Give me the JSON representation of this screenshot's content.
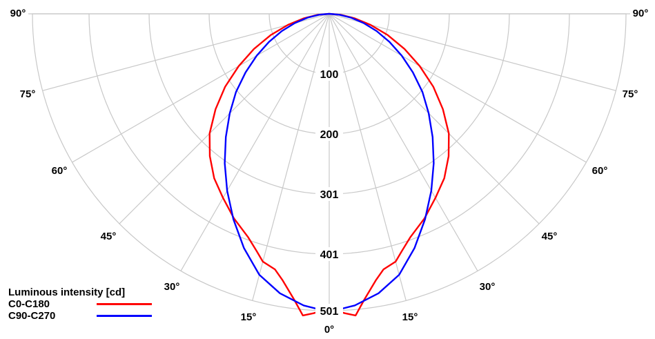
{
  "chart_data": {
    "type": "polar",
    "legend_title": "Luminous intensity [cd]",
    "legend_position": "bottom-left",
    "radial_ticks": [
      "100",
      "200",
      "301",
      "401",
      "501"
    ],
    "angle_ticks": [
      "0°",
      "15°",
      "30°",
      "45°",
      "60°",
      "75°",
      "90°"
    ],
    "grid": true,
    "series": [
      {
        "name": "C0-C180",
        "color": "#ff0000",
        "angles": [
          0,
          2,
          3,
          5,
          7,
          10,
          12,
          15,
          17,
          20,
          25,
          30,
          35,
          40,
          45,
          50,
          55,
          60,
          65,
          70,
          75,
          80,
          85,
          90
        ],
        "values": [
          500,
          502,
          505,
          510,
          485,
          455,
          440,
          432,
          418,
          400,
          380,
          358,
          338,
          313,
          285,
          250,
          214,
          176,
          140,
          105,
          72,
          43,
          20,
          0
        ]
      },
      {
        "name": "C90-C270",
        "color": "#0000ff",
        "angles": [
          0,
          2,
          5,
          10,
          15,
          20,
          25,
          30,
          35,
          40,
          45,
          50,
          55,
          60,
          65,
          70,
          75,
          80,
          85,
          90
        ],
        "values": [
          500,
          498,
          493,
          478,
          455,
          420,
          382,
          344,
          307,
          271,
          237,
          205,
          172,
          141,
          112,
          85,
          60,
          37,
          17,
          0
        ]
      }
    ]
  }
}
